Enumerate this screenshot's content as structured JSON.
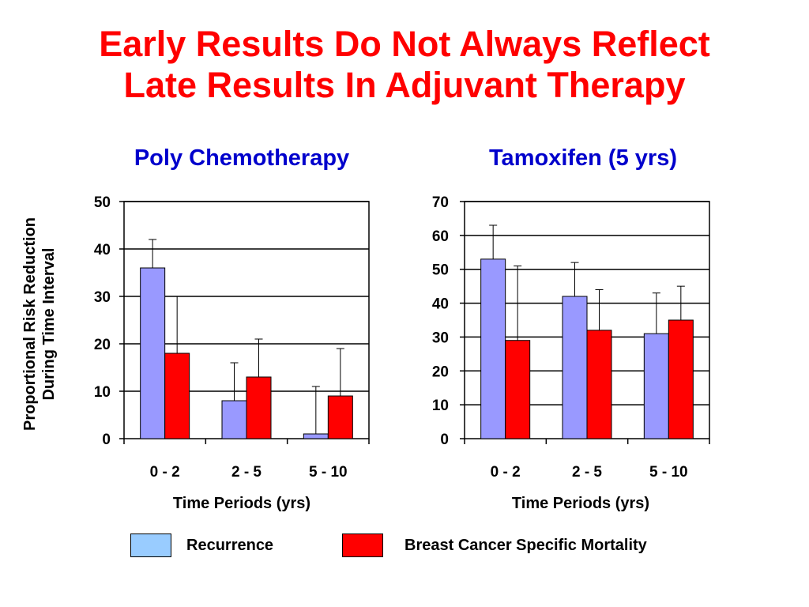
{
  "title_line1": "Early Results Do Not Always Reflect",
  "title_line2": "Late Results In Adjuvant Therapy",
  "ylabel_line1": "Proportional Risk Reduction",
  "ylabel_line2": "During Time Interval",
  "legend": {
    "recurrence": "Recurrence",
    "mortality": "Breast Cancer Specific Mortality"
  },
  "colors": {
    "recurrence_bar": "#9999ff",
    "mortality_bar": "#ff0000",
    "recurrence_legend": "#99ccff",
    "title": "#ff0000",
    "panel_title": "#0000cc"
  },
  "chart_data": [
    {
      "type": "bar",
      "title": "Poly Chemotherapy",
      "xlabel": "Time Periods (yrs)",
      "ylabel": "Proportional Risk Reduction During Time Interval",
      "categories": [
        "0 - 2",
        "2 - 5",
        "5 - 10"
      ],
      "ylim": [
        0,
        50
      ],
      "yticks": [
        0,
        10,
        20,
        30,
        40,
        50
      ],
      "grid": true,
      "series": [
        {
          "name": "Recurrence",
          "values": [
            36,
            8,
            1
          ],
          "error_upper": [
            42,
            16,
            11
          ]
        },
        {
          "name": "Breast Cancer Specific Mortality",
          "values": [
            18,
            13,
            9
          ],
          "error_upper": [
            30,
            21,
            19
          ]
        }
      ]
    },
    {
      "type": "bar",
      "title": "Tamoxifen (5 yrs)",
      "xlabel": "Time Periods (yrs)",
      "ylabel": "Proportional Risk Reduction During Time Interval",
      "categories": [
        "0 - 2",
        "2 - 5",
        "5 - 10"
      ],
      "ylim": [
        0,
        70
      ],
      "yticks": [
        0,
        10,
        20,
        30,
        40,
        50,
        60,
        70
      ],
      "grid": true,
      "series": [
        {
          "name": "Recurrence",
          "values": [
            53,
            42,
            31
          ],
          "error_upper": [
            63,
            52,
            43
          ]
        },
        {
          "name": "Breast Cancer Specific Mortality",
          "values": [
            29,
            32,
            35
          ],
          "error_upper": [
            51,
            44,
            45
          ]
        }
      ]
    }
  ]
}
